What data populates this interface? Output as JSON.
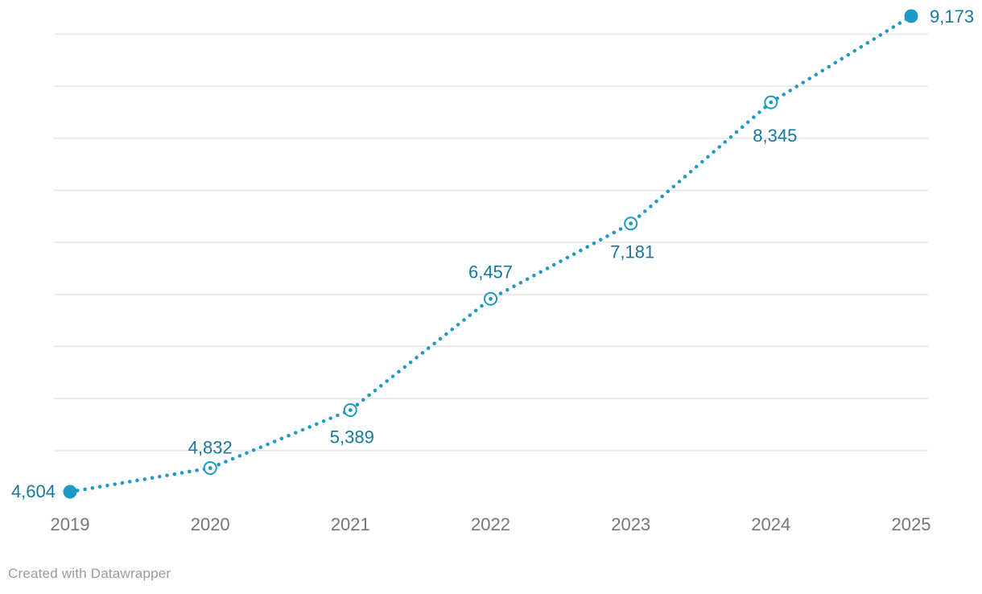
{
  "chart_data": {
    "type": "line",
    "line_style": "dotted",
    "title": "",
    "xlabel": "",
    "ylabel": "",
    "x": [
      "2019",
      "2020",
      "2021",
      "2022",
      "2023",
      "2024",
      "2025"
    ],
    "values": [
      4604,
      4832,
      5389,
      6457,
      7181,
      8345,
      9173
    ],
    "value_labels": [
      "4,604",
      "4,832",
      "5,389",
      "6,457",
      "7,181",
      "8,345",
      "9,173"
    ],
    "ylim": [
      4450,
      9250
    ],
    "gridlines_y": [
      5000,
      5500,
      6000,
      6500,
      7000,
      7500,
      8000,
      8500,
      9000
    ],
    "y_tick_labels_shown": false,
    "grid": true,
    "legend": {
      "shown": false
    }
  },
  "footer": {
    "attribution": "Created with Datawrapper"
  },
  "colors": {
    "line": "#1f9ac6",
    "point_fill": "#1f9ac6",
    "point_hollow_fill": "#ffffff",
    "value_label": "#17789e",
    "axis_label": "#767676",
    "gridline": "#e9e9e9",
    "footer_text": "#9b9b9b",
    "background": "#ffffff"
  }
}
